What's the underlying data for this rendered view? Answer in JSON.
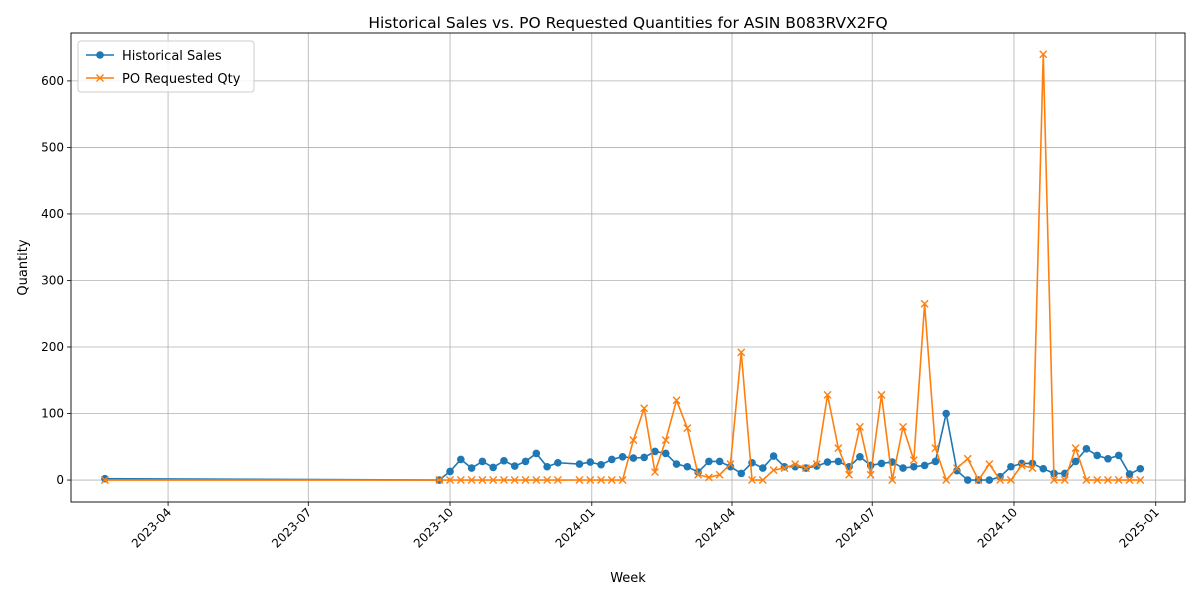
{
  "colors": {
    "sales": "#1f77b4",
    "po": "#ff7f0e",
    "grid": "#b0b0b0"
  },
  "chart_data": {
    "type": "line",
    "title": "Historical Sales vs. PO Requested Quantities for ASIN B083RVX2FQ",
    "xlabel": "Week",
    "ylabel": "Quantity",
    "x_type": "date",
    "xlim": [
      "2023-01-28",
      "2025-01-20"
    ],
    "ylim": [
      -33,
      672
    ],
    "x_ticks": [
      "2023-04-01",
      "2023-07-01",
      "2023-10-01",
      "2024-01-01",
      "2024-04-01",
      "2024-07-01",
      "2024-10-01",
      "2025-01-01"
    ],
    "x_tick_labels": [
      "2023-04",
      "2023-07",
      "2023-10",
      "2024-01",
      "2024-04",
      "2024-07",
      "2024-10",
      "2025-01"
    ],
    "y_ticks": [
      0,
      100,
      200,
      300,
      400,
      500,
      600
    ],
    "grid": true,
    "legend_position": "upper-left",
    "x": [
      "2023-02-19",
      "2023-09-24",
      "2023-10-01",
      "2023-10-08",
      "2023-10-15",
      "2023-10-22",
      "2023-10-29",
      "2023-11-05",
      "2023-11-12",
      "2023-11-19",
      "2023-11-26",
      "2023-12-03",
      "2023-12-10",
      "2023-12-24",
      "2023-12-31",
      "2024-01-07",
      "2024-01-14",
      "2024-01-21",
      "2024-01-28",
      "2024-02-04",
      "2024-02-11",
      "2024-02-18",
      "2024-02-25",
      "2024-03-03",
      "2024-03-10",
      "2024-03-17",
      "2024-03-24",
      "2024-03-31",
      "2024-04-07",
      "2024-04-14",
      "2024-04-21",
      "2024-04-28",
      "2024-05-05",
      "2024-05-12",
      "2024-05-19",
      "2024-05-26",
      "2024-06-02",
      "2024-06-09",
      "2024-06-16",
      "2024-06-23",
      "2024-06-30",
      "2024-07-07",
      "2024-07-14",
      "2024-07-21",
      "2024-07-28",
      "2024-08-04",
      "2024-08-11",
      "2024-08-18",
      "2024-08-25",
      "2024-09-01",
      "2024-09-08",
      "2024-09-15",
      "2024-09-22",
      "2024-09-29",
      "2024-10-06",
      "2024-10-13",
      "2024-10-20",
      "2024-10-27",
      "2024-11-03",
      "2024-11-10",
      "2024-11-17",
      "2024-11-24",
      "2024-12-01",
      "2024-12-08",
      "2024-12-15",
      "2024-12-22"
    ],
    "series": [
      {
        "name": "Historical Sales",
        "marker": "circle",
        "values": [
          2,
          0,
          13,
          31,
          18,
          28,
          19,
          29,
          21,
          28,
          40,
          20,
          26,
          24,
          27,
          23,
          31,
          35,
          33,
          34,
          43,
          40,
          24,
          20,
          12,
          28,
          28,
          20,
          10,
          26,
          18,
          36,
          20,
          20,
          18,
          21,
          27,
          28,
          20,
          35,
          22,
          25,
          27,
          18,
          20,
          22,
          28,
          100,
          14,
          0,
          0,
          0,
          5,
          20,
          25,
          25,
          17,
          10,
          10,
          28,
          47,
          37,
          32,
          37,
          9,
          17
        ]
      },
      {
        "name": "PO Requested Qty",
        "marker": "x",
        "values": [
          0,
          0,
          0,
          0,
          0,
          0,
          0,
          0,
          0,
          0,
          0,
          0,
          0,
          0,
          0,
          0,
          0,
          0,
          60,
          108,
          12,
          60,
          120,
          78,
          8,
          4,
          8,
          24,
          192,
          0,
          0,
          15,
          18,
          24,
          18,
          24,
          128,
          48,
          8,
          80,
          8,
          128,
          0,
          80,
          30,
          265,
          48,
          0,
          18,
          32,
          0,
          24,
          0,
          0,
          22,
          18,
          640,
          0,
          0,
          48,
          0,
          0,
          0,
          0,
          0,
          0
        ]
      }
    ]
  }
}
